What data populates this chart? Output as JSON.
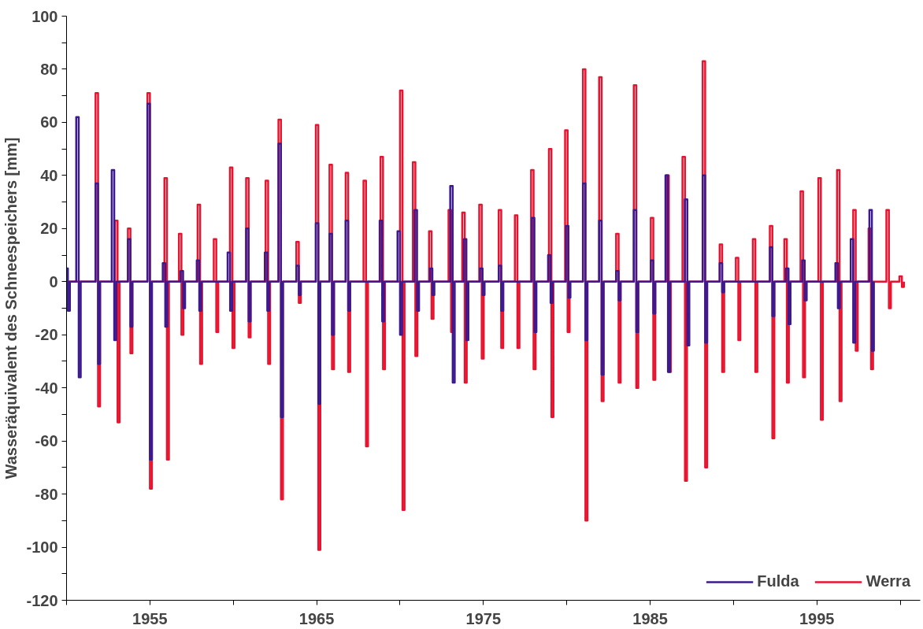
{
  "chart_data": {
    "type": "step",
    "ylabel": "Wasseräquivalent des Schneespeichers [mm]",
    "xlim": [
      1950,
      2001.2
    ],
    "xticks": [
      {
        "value": 1950,
        "label": null
      },
      1955,
      {
        "value": 1960,
        "label": null
      },
      1965,
      {
        "value": 1970,
        "label": null
      },
      1975,
      {
        "value": 1980,
        "label": null
      },
      1985,
      {
        "value": 1990,
        "label": null
      },
      1995,
      {
        "value": 2000,
        "label": null
      }
    ],
    "ylim": [
      -120,
      100
    ],
    "yticks": [
      -120,
      {
        "value": -110,
        "label": null
      },
      -100,
      {
        "value": -90,
        "label": null
      },
      -80,
      {
        "value": -70,
        "label": null
      },
      -60,
      {
        "value": -50,
        "label": null
      },
      -40,
      {
        "value": -30,
        "label": null
      },
      -20,
      {
        "value": -10,
        "label": null
      },
      0,
      {
        "value": 10,
        "label": null
      },
      20,
      {
        "value": 30,
        "label": null
      },
      40,
      {
        "value": 50,
        "label": null
      },
      60,
      {
        "value": 70,
        "label": null
      },
      80,
      {
        "value": 90,
        "label": null
      },
      100
    ],
    "grid": false,
    "legend": "bottom right",
    "line_style": "solid",
    "marker": "none",
    "series": [
      {
        "name": "Fulda",
        "color": "#3b1a8f",
        "x": [
          1950.0,
          1950.08,
          1950.2,
          1950.58,
          1950.73,
          1950.85,
          1951.74,
          1951.89,
          1952.01,
          1952.71,
          1952.86,
          1952.98,
          1953.68,
          1953.83,
          1953.95,
          1954.85,
          1955.0,
          1955.12,
          1955.77,
          1955.92,
          1956.04,
          1956.84,
          1956.99,
          1957.11,
          1957.81,
          1957.96,
          1958.08,
          1959.66,
          1959.81,
          1959.93,
          1960.77,
          1960.92,
          1961.04,
          1961.89,
          1962.04,
          1962.16,
          1962.71,
          1962.86,
          1962.98,
          1963.78,
          1963.93,
          1964.05,
          1964.95,
          1965.1,
          1965.22,
          1965.77,
          1965.92,
          1966.04,
          1966.74,
          1966.89,
          1967.01,
          1968.78,
          1968.93,
          1969.05,
          1969.85,
          1970.0,
          1970.12,
          1970.87,
          1971.02,
          1971.14,
          1971.79,
          1971.94,
          1972.06,
          1973.01,
          1973.16,
          1973.28,
          1973.83,
          1973.98,
          1974.1,
          1974.8,
          1974.95,
          1975.07,
          1975.92,
          1976.07,
          1976.19,
          1977.91,
          1978.06,
          1978.18,
          1978.88,
          1979.03,
          1979.15,
          1979.95,
          1980.1,
          1980.22,
          1980.97,
          1981.12,
          1981.24,
          1981.94,
          1982.09,
          1982.21,
          1982.96,
          1983.11,
          1983.23,
          1984.02,
          1984.17,
          1984.29,
          1985.04,
          1985.19,
          1985.31,
          1985.92,
          1986.07,
          1986.19,
          1987.08,
          1987.23,
          1987.35,
          1988.15,
          1988.3,
          1988.42,
          1989.17,
          1989.32,
          1989.44,
          1992.18,
          1992.33,
          1992.45,
          1993.15,
          1993.3,
          1993.42,
          1994.12,
          1994.27,
          1994.39,
          1996.11,
          1996.26,
          1996.38,
          1997.03,
          1997.18,
          1997.3,
          1998.15,
          1998.3,
          1998.42
        ],
        "values": [
          5,
          -11,
          0,
          62,
          -36,
          0,
          37,
          -31,
          0,
          42,
          -22,
          0,
          16,
          -17,
          0,
          67,
          -67,
          0,
          7,
          -17,
          0,
          4,
          -10,
          0,
          8,
          -11,
          0,
          11,
          -11,
          0,
          20,
          -15,
          0,
          11,
          -11,
          0,
          52,
          -51,
          0,
          6,
          -5,
          0,
          22,
          -46,
          0,
          18,
          -20,
          0,
          23,
          -11,
          0,
          23,
          -15,
          0,
          19,
          -20,
          0,
          27,
          -11,
          0,
          5,
          -5,
          0,
          36,
          -38,
          0,
          16,
          -22,
          0,
          5,
          -5,
          0,
          6,
          -11,
          0,
          24,
          -19,
          0,
          10,
          -8,
          0,
          21,
          -6,
          0,
          37,
          -22,
          0,
          23,
          -35,
          0,
          4,
          -7,
          0,
          27,
          -19,
          0,
          8,
          -12,
          0,
          40,
          -34,
          0,
          31,
          -24,
          0,
          40,
          -23,
          0,
          7,
          -4,
          0,
          13,
          -13,
          0,
          5,
          -16,
          0,
          8,
          -7,
          0,
          7,
          -10,
          0,
          16,
          -23,
          0,
          27,
          -26,
          0
        ]
      },
      {
        "name": "Werra",
        "color": "#e8132f",
        "x": [
          1950.0,
          1951.74,
          1951.89,
          1952.01,
          1952.91,
          1953.06,
          1953.18,
          1953.68,
          1953.83,
          1953.95,
          1954.85,
          1955.0,
          1955.12,
          1955.87,
          1956.02,
          1956.14,
          1956.74,
          1956.89,
          1957.01,
          1957.86,
          1958.01,
          1958.13,
          1958.83,
          1958.98,
          1959.1,
          1959.8,
          1959.95,
          1960.07,
          1960.77,
          1960.92,
          1961.04,
          1961.94,
          1962.09,
          1962.21,
          1962.71,
          1962.86,
          1962.98,
          1963.78,
          1963.93,
          1964.05,
          1964.95,
          1965.1,
          1965.22,
          1965.77,
          1965.92,
          1966.04,
          1966.74,
          1966.89,
          1967.01,
          1967.81,
          1967.96,
          1968.08,
          1968.83,
          1968.98,
          1969.1,
          1970.0,
          1970.15,
          1970.27,
          1970.77,
          1970.92,
          1971.04,
          1971.74,
          1971.89,
          1972.01,
          1972.91,
          1973.06,
          1973.18,
          1973.73,
          1973.88,
          1974.0,
          1974.75,
          1974.9,
          1975.02,
          1975.92,
          1976.07,
          1976.19,
          1976.89,
          1977.04,
          1977.16,
          1977.86,
          1978.01,
          1978.13,
          1978.93,
          1979.08,
          1979.2,
          1979.9,
          1980.05,
          1980.17,
          1980.97,
          1981.12,
          1981.24,
          1981.94,
          1982.09,
          1982.21,
          1982.96,
          1983.11,
          1983.23,
          1984.02,
          1984.17,
          1984.29,
          1985.04,
          1985.19,
          1985.31,
          1985.97,
          1986.12,
          1986.24,
          1986.94,
          1987.09,
          1987.21,
          1988.15,
          1988.3,
          1988.42,
          1989.17,
          1989.32,
          1989.44,
          1990.14,
          1990.29,
          1990.41,
          1991.16,
          1991.31,
          1991.43,
          1992.18,
          1992.33,
          1992.45,
          1993.05,
          1993.2,
          1993.32,
          1994.02,
          1994.17,
          1994.29,
          1995.09,
          1995.24,
          1995.36,
          1996.21,
          1996.36,
          1996.48,
          1997.18,
          1997.33,
          1997.45,
          1998.1,
          1998.25,
          1998.37,
          1999.17,
          1999.32,
          1999.44,
          1999.95,
          2000.1,
          2000.22
        ],
        "values": [
          0,
          71,
          -47,
          0,
          23,
          -53,
          0,
          20,
          -27,
          0,
          71,
          -78,
          0,
          39,
          -67,
          0,
          18,
          -20,
          0,
          29,
          -31,
          0,
          16,
          -19,
          0,
          43,
          -25,
          0,
          39,
          -21,
          0,
          38,
          -31,
          0,
          61,
          -82,
          0,
          15,
          -8,
          0,
          59,
          -101,
          0,
          44,
          -33,
          0,
          41,
          -34,
          0,
          38,
          -62,
          0,
          47,
          -33,
          0,
          72,
          -86,
          0,
          45,
          -28,
          0,
          19,
          -14,
          0,
          27,
          -19,
          0,
          26,
          -38,
          0,
          29,
          -29,
          0,
          27,
          -25,
          0,
          25,
          -25,
          0,
          42,
          -33,
          0,
          50,
          -51,
          0,
          57,
          -19,
          0,
          80,
          -90,
          0,
          77,
          -45,
          0,
          18,
          -38,
          0,
          74,
          -40,
          0,
          24,
          -37,
          0,
          40,
          -34,
          0,
          47,
          -75,
          0,
          83,
          -70,
          0,
          14,
          -34,
          0,
          9,
          -22,
          0,
          16,
          -34,
          0,
          21,
          -59,
          0,
          16,
          -38,
          0,
          34,
          -36,
          0,
          39,
          -52,
          0,
          42,
          -45,
          0,
          27,
          -26,
          0,
          20,
          -33,
          0,
          27,
          -10,
          0,
          2,
          -2,
          0
        ]
      }
    ]
  }
}
